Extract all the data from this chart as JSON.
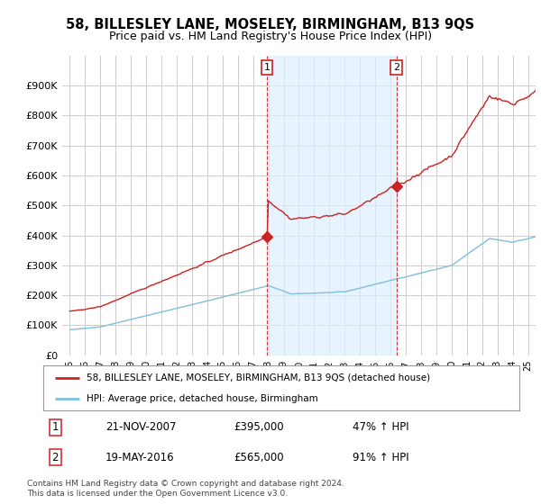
{
  "title": "58, BILLESLEY LANE, MOSELEY, BIRMINGHAM, B13 9QS",
  "subtitle": "Price paid vs. HM Land Registry's House Price Index (HPI)",
  "title_fontsize": 10.5,
  "subtitle_fontsize": 9,
  "hpi_color": "#7fbfdf",
  "price_color": "#cc2222",
  "background_color": "#ffffff",
  "grid_color": "#cccccc",
  "shade_color": "#ddeeff",
  "ylim": [
    0,
    1000000
  ],
  "yticks": [
    0,
    100000,
    200000,
    300000,
    400000,
    500000,
    600000,
    700000,
    800000,
    900000
  ],
  "ytick_labels": [
    "£0",
    "£100K",
    "£200K",
    "£300K",
    "£400K",
    "£500K",
    "£600K",
    "£700K",
    "£800K",
    "£900K"
  ],
  "t1_year": 2007.9,
  "t2_year": 2016.38,
  "price_t1": 395000,
  "price_t2": 565000,
  "legend_label1": "58, BILLESLEY LANE, MOSELEY, BIRMINGHAM, B13 9QS (detached house)",
  "legend_label2": "HPI: Average price, detached house, Birmingham",
  "footer1": "Contains HM Land Registry data © Crown copyright and database right 2024.",
  "footer2": "This data is licensed under the Open Government Licence v3.0.",
  "table_rows": [
    {
      "num": "1",
      "date": "21-NOV-2007",
      "price": "£395,000",
      "hpi": "47% ↑ HPI"
    },
    {
      "num": "2",
      "date": "19-MAY-2016",
      "price": "£565,000",
      "hpi": "91% ↑ HPI"
    }
  ]
}
